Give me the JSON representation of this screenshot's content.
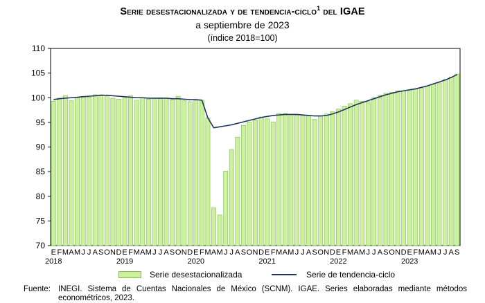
{
  "header": {
    "title": "Serie desestacionalizada y de tendencia-ciclo",
    "title_superscript": "1",
    "title_suffix": " del ",
    "title_acronym": "IGAE",
    "subtitle": "a septiembre de 2023",
    "unit_note": "(índice 2018=100)"
  },
  "legend": {
    "bars_label": "Serie desestacionalizada",
    "line_label": "Serie de tendencia-ciclo"
  },
  "source": {
    "lead": "Fuente:",
    "text": "INEGI. Sistema de Cuentas Nacionales de México (SCNM). IGAE. Series elaboradas mediante métodos econométricos, 2023."
  },
  "colors": {
    "bar_fill": "#ccf09e",
    "bar_stroke": "#7cbf4a",
    "line": "#1f3560"
  },
  "chart_data": {
    "type": "bar",
    "yticks": [
      70,
      75,
      80,
      85,
      90,
      95,
      100,
      105,
      110
    ],
    "ylim": [
      70,
      110
    ],
    "month_labels": [
      "E",
      "F",
      "M",
      "A",
      "M",
      "J",
      "J",
      "A",
      "S",
      "O",
      "N",
      "D"
    ],
    "years": [
      "2018",
      "2019",
      "2020",
      "2021",
      "2022",
      "2023"
    ],
    "categories_note": "monthly, January 2018 to September 2023",
    "series": [
      {
        "name": "Serie desestacionalizada",
        "kind": "bar",
        "values": [
          99.3,
          99.9,
          100.4,
          99.4,
          100.0,
          100.3,
          100.1,
          100.6,
          100.6,
          100.5,
          99.9,
          99.7,
          100.0,
          100.4,
          99.5,
          100.0,
          99.7,
          99.9,
          99.8,
          99.9,
          99.6,
          100.3,
          99.4,
          99.2,
          99.5,
          99.5,
          95.9,
          77.7,
          76.2,
          85.1,
          89.5,
          92.0,
          94.4,
          95.1,
          95.5,
          96.1,
          95.7,
          95.1,
          96.8,
          96.8,
          96.6,
          96.5,
          96.3,
          96.3,
          95.6,
          96.3,
          96.7,
          97.2,
          97.7,
          98.3,
          98.8,
          99.5,
          99.3,
          99.2,
          100.0,
          100.5,
          100.9,
          101.1,
          101.4,
          101.4,
          101.6,
          101.8,
          102.0,
          102.4,
          102.7,
          103.0,
          103.7,
          104.2,
          104.8
        ]
      },
      {
        "name": "Serie de tendencia-ciclo",
        "kind": "line",
        "values": [
          99.6,
          99.8,
          99.9,
          100.0,
          100.1,
          100.2,
          100.3,
          100.4,
          100.5,
          100.5,
          100.4,
          100.3,
          100.2,
          100.1,
          100.0,
          100.0,
          99.9,
          99.9,
          99.9,
          99.9,
          99.8,
          99.8,
          99.7,
          99.6,
          99.6,
          99.5,
          95.9,
          93.9,
          94.1,
          94.3,
          94.5,
          94.8,
          95.1,
          95.4,
          95.7,
          96.0,
          96.2,
          96.4,
          96.5,
          96.6,
          96.6,
          96.6,
          96.5,
          96.4,
          96.3,
          96.3,
          96.4,
          96.7,
          97.1,
          97.6,
          98.1,
          98.6,
          99.0,
          99.4,
          99.8,
          100.2,
          100.6,
          100.9,
          101.2,
          101.4,
          101.6,
          101.8,
          102.1,
          102.4,
          102.8,
          103.2,
          103.6,
          104.1,
          104.7
        ]
      }
    ]
  }
}
